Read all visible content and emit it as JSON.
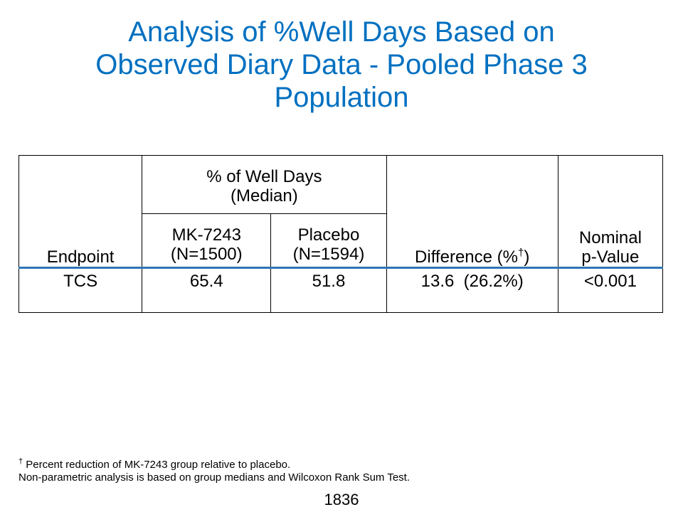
{
  "slide": {
    "title_lines": [
      "Analysis of %Well Days Based on",
      "Observed Diary Data - Pooled Phase 3",
      "Population"
    ]
  },
  "table": {
    "headers": {
      "endpoint": "Endpoint",
      "group_line1": "% of Well Days",
      "group_line2": "(Median)",
      "mk_line1": "MK-7243",
      "mk_line2": "(N=1500)",
      "placebo_line1": "Placebo",
      "placebo_line2": "(N=1594)",
      "difference_pre": "Difference (%",
      "difference_sup": "†",
      "difference_post": ")",
      "pvalue_line1": "Nominal",
      "pvalue_line2": "p-Value"
    },
    "rows": [
      {
        "endpoint": "TCS",
        "mk": "65.4",
        "placebo": "51.8",
        "difference": "13.6  (26.2%)",
        "pvalue": "<0.001"
      }
    ]
  },
  "footnotes": {
    "dagger_symbol": "†",
    "line1": " Percent reduction of MK-7243 group relative to placebo.",
    "line2": "Non-parametric analysis is based on group medians and Wilcoxon Rank Sum Test."
  },
  "page_number": "1836"
}
